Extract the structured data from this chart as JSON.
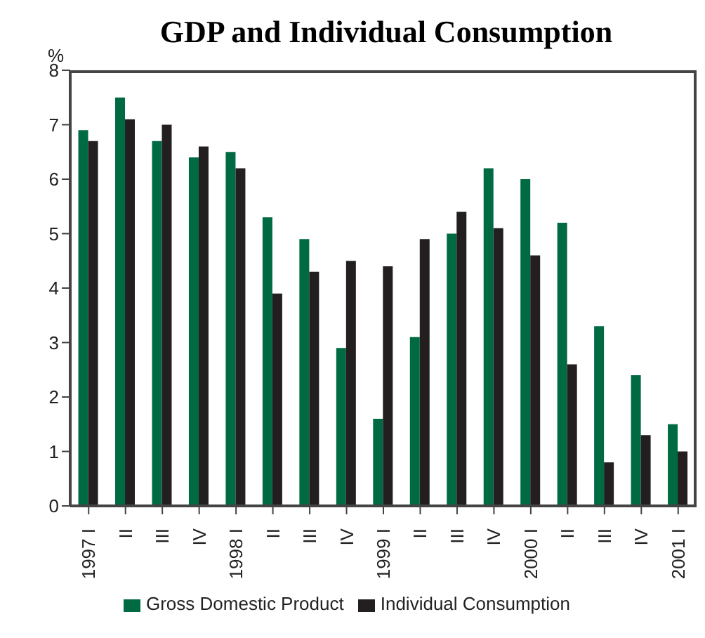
{
  "chart_data": {
    "type": "bar",
    "title": "GDP and Individual Consumption",
    "ylabel": "%",
    "categories": [
      "1997 I",
      "II",
      "III",
      "IV",
      "1998 I",
      "II",
      "III",
      "IV",
      "1999 I",
      "II",
      "III",
      "IV",
      "2000 I",
      "II",
      "III",
      "IV",
      "2001 I"
    ],
    "series": [
      {
        "name": "Gross Domestic Product",
        "color": "#006a42",
        "values": [
          6.9,
          7.5,
          6.7,
          6.4,
          6.5,
          5.3,
          4.9,
          2.9,
          1.6,
          3.1,
          5.0,
          6.2,
          6.0,
          5.2,
          3.3,
          2.4,
          1.5
        ]
      },
      {
        "name": "Individual Consumption",
        "color": "#231f20",
        "values": [
          6.7,
          7.1,
          7.0,
          6.6,
          6.2,
          3.9,
          4.3,
          4.5,
          4.4,
          4.9,
          5.4,
          5.1,
          4.6,
          2.6,
          0.8,
          1.3,
          1.0
        ]
      }
    ],
    "ylim": [
      0,
      8
    ],
    "yticks": [
      0,
      1,
      2,
      3,
      4,
      5,
      6,
      7,
      8
    ],
    "grid": false,
    "legend": "bottom"
  }
}
